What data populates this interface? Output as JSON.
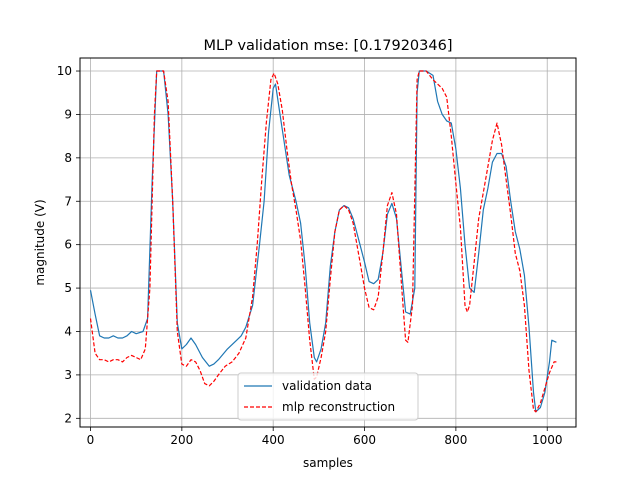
{
  "chart_data": {
    "type": "line",
    "title": "MLP validation mse: [0.17920346]",
    "xlabel": "samples",
    "ylabel": "magnitude (V)",
    "xlim": [
      -23,
      1063
    ],
    "ylim": [
      1.8,
      10.3
    ],
    "xticks": [
      0,
      200,
      400,
      600,
      800,
      1000
    ],
    "yticks": [
      2,
      3,
      4,
      5,
      6,
      7,
      8,
      9,
      10
    ],
    "grid": true,
    "legend_position": "lower-center",
    "series": [
      {
        "name": "validation data",
        "color": "#1f77b4",
        "style": "solid",
        "points": [
          [
            0,
            4.95
          ],
          [
            10,
            4.4
          ],
          [
            20,
            3.9
          ],
          [
            30,
            3.85
          ],
          [
            40,
            3.85
          ],
          [
            50,
            3.9
          ],
          [
            60,
            3.85
          ],
          [
            70,
            3.85
          ],
          [
            80,
            3.9
          ],
          [
            90,
            4.0
          ],
          [
            100,
            3.95
          ],
          [
            115,
            4.0
          ],
          [
            125,
            4.3
          ],
          [
            135,
            7.5
          ],
          [
            145,
            10.0
          ],
          [
            160,
            10.0
          ],
          [
            170,
            9.0
          ],
          [
            180,
            7.0
          ],
          [
            190,
            4.2
          ],
          [
            200,
            3.6
          ],
          [
            210,
            3.7
          ],
          [
            220,
            3.85
          ],
          [
            230,
            3.7
          ],
          [
            245,
            3.4
          ],
          [
            260,
            3.2
          ],
          [
            270,
            3.25
          ],
          [
            280,
            3.35
          ],
          [
            300,
            3.6
          ],
          [
            320,
            3.8
          ],
          [
            330,
            3.9
          ],
          [
            340,
            4.1
          ],
          [
            355,
            4.6
          ],
          [
            370,
            6.0
          ],
          [
            380,
            7.0
          ],
          [
            390,
            8.6
          ],
          [
            400,
            9.6
          ],
          [
            405,
            9.7
          ],
          [
            415,
            9.0
          ],
          [
            425,
            8.3
          ],
          [
            435,
            7.6
          ],
          [
            450,
            7.0
          ],
          [
            460,
            6.5
          ],
          [
            470,
            5.5
          ],
          [
            480,
            4.2
          ],
          [
            490,
            3.4
          ],
          [
            495,
            3.3
          ],
          [
            505,
            3.6
          ],
          [
            515,
            4.2
          ],
          [
            525,
            5.5
          ],
          [
            535,
            6.3
          ],
          [
            545,
            6.8
          ],
          [
            555,
            6.9
          ],
          [
            565,
            6.85
          ],
          [
            575,
            6.6
          ],
          [
            590,
            6.0
          ],
          [
            600,
            5.6
          ],
          [
            610,
            5.15
          ],
          [
            620,
            5.1
          ],
          [
            630,
            5.2
          ],
          [
            640,
            5.8
          ],
          [
            650,
            6.7
          ],
          [
            660,
            6.95
          ],
          [
            670,
            6.6
          ],
          [
            680,
            5.5
          ],
          [
            690,
            4.45
          ],
          [
            700,
            4.4
          ],
          [
            710,
            5.0
          ],
          [
            715,
            9.5
          ],
          [
            720,
            10.0
          ],
          [
            735,
            10.0
          ],
          [
            750,
            9.9
          ],
          [
            760,
            9.3
          ],
          [
            770,
            9.0
          ],
          [
            780,
            8.85
          ],
          [
            790,
            8.8
          ],
          [
            800,
            8.2
          ],
          [
            810,
            7.3
          ],
          [
            820,
            6.0
          ],
          [
            830,
            5.0
          ],
          [
            840,
            4.9
          ],
          [
            850,
            5.8
          ],
          [
            860,
            6.8
          ],
          [
            870,
            7.3
          ],
          [
            880,
            7.9
          ],
          [
            890,
            8.1
          ],
          [
            900,
            8.1
          ],
          [
            910,
            7.8
          ],
          [
            920,
            7.0
          ],
          [
            930,
            6.3
          ],
          [
            940,
            5.9
          ],
          [
            950,
            5.3
          ],
          [
            960,
            4.1
          ],
          [
            970,
            2.6
          ],
          [
            975,
            2.15
          ],
          [
            985,
            2.25
          ],
          [
            995,
            2.6
          ],
          [
            1005,
            3.3
          ],
          [
            1010,
            3.8
          ],
          [
            1020,
            3.75
          ]
        ]
      },
      {
        "name": "mlp reconstruction",
        "color": "#ff0000",
        "style": "dashed",
        "points": [
          [
            0,
            4.3
          ],
          [
            10,
            3.5
          ],
          [
            20,
            3.35
          ],
          [
            30,
            3.35
          ],
          [
            40,
            3.3
          ],
          [
            50,
            3.35
          ],
          [
            60,
            3.35
          ],
          [
            70,
            3.3
          ],
          [
            80,
            3.4
          ],
          [
            90,
            3.45
          ],
          [
            100,
            3.4
          ],
          [
            110,
            3.35
          ],
          [
            120,
            3.6
          ],
          [
            130,
            5.0
          ],
          [
            140,
            9.0
          ],
          [
            145,
            10.0
          ],
          [
            160,
            10.0
          ],
          [
            170,
            9.3
          ],
          [
            180,
            7.0
          ],
          [
            190,
            4.0
          ],
          [
            200,
            3.25
          ],
          [
            210,
            3.2
          ],
          [
            220,
            3.35
          ],
          [
            230,
            3.3
          ],
          [
            240,
            3.1
          ],
          [
            250,
            2.8
          ],
          [
            260,
            2.75
          ],
          [
            270,
            2.85
          ],
          [
            280,
            3.0
          ],
          [
            295,
            3.2
          ],
          [
            310,
            3.3
          ],
          [
            325,
            3.5
          ],
          [
            340,
            3.85
          ],
          [
            355,
            4.8
          ],
          [
            365,
            6.0
          ],
          [
            375,
            7.5
          ],
          [
            385,
            8.8
          ],
          [
            395,
            9.8
          ],
          [
            402,
            9.95
          ],
          [
            410,
            9.7
          ],
          [
            420,
            9.1
          ],
          [
            430,
            8.2
          ],
          [
            440,
            7.4
          ],
          [
            450,
            6.8
          ],
          [
            460,
            6.1
          ],
          [
            470,
            5.0
          ],
          [
            480,
            3.8
          ],
          [
            490,
            2.9
          ],
          [
            495,
            2.95
          ],
          [
            505,
            3.4
          ],
          [
            515,
            4.0
          ],
          [
            525,
            5.2
          ],
          [
            535,
            6.3
          ],
          [
            545,
            6.8
          ],
          [
            555,
            6.9
          ],
          [
            565,
            6.8
          ],
          [
            575,
            6.5
          ],
          [
            590,
            5.6
          ],
          [
            600,
            5.0
          ],
          [
            610,
            4.55
          ],
          [
            620,
            4.5
          ],
          [
            630,
            4.8
          ],
          [
            640,
            5.8
          ],
          [
            650,
            6.9
          ],
          [
            660,
            7.2
          ],
          [
            670,
            6.7
          ],
          [
            680,
            5.2
          ],
          [
            690,
            3.8
          ],
          [
            695,
            3.75
          ],
          [
            705,
            4.6
          ],
          [
            715,
            9.8
          ],
          [
            720,
            10.0
          ],
          [
            735,
            10.0
          ],
          [
            750,
            9.8
          ],
          [
            760,
            9.7
          ],
          [
            770,
            9.6
          ],
          [
            780,
            9.4
          ],
          [
            790,
            8.5
          ],
          [
            800,
            7.4
          ],
          [
            810,
            6.4
          ],
          [
            820,
            4.6
          ],
          [
            825,
            4.45
          ],
          [
            830,
            4.6
          ],
          [
            840,
            5.6
          ],
          [
            850,
            6.6
          ],
          [
            860,
            7.2
          ],
          [
            870,
            7.8
          ],
          [
            880,
            8.4
          ],
          [
            890,
            8.8
          ],
          [
            900,
            8.3
          ],
          [
            910,
            7.5
          ],
          [
            920,
            6.7
          ],
          [
            930,
            5.8
          ],
          [
            940,
            5.4
          ],
          [
            950,
            4.6
          ],
          [
            960,
            3.1
          ],
          [
            970,
            2.2
          ],
          [
            975,
            2.15
          ],
          [
            985,
            2.35
          ],
          [
            995,
            2.7
          ],
          [
            1005,
            3.05
          ],
          [
            1015,
            3.3
          ],
          [
            1020,
            3.3
          ]
        ]
      }
    ]
  }
}
